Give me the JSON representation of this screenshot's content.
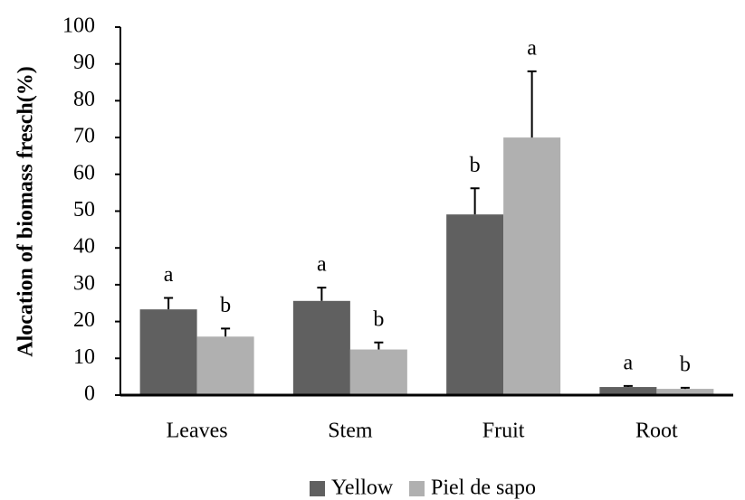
{
  "chart_data": {
    "type": "bar",
    "y_label": "Alocation of biomass fresch(%)",
    "categories": [
      "Leaves",
      "Stem",
      "Fruit",
      "Root"
    ],
    "series": [
      {
        "name": "Yellow",
        "color": "#606060",
        "values": [
          23.3,
          25.6,
          49.1,
          2.2
        ],
        "errors": [
          3.1,
          3.6,
          7.1,
          0.3
        ],
        "letters": [
          "a",
          "a",
          "b",
          "a"
        ]
      },
      {
        "name": "Piel de sapo",
        "color": "#b0b0b0",
        "values": [
          15.9,
          12.4,
          70,
          1.7
        ],
        "errors": [
          2.2,
          1.9,
          18,
          0.3
        ],
        "letters": [
          "b",
          "b",
          "a",
          "b"
        ]
      }
    ],
    "ylim": [
      0,
      100
    ],
    "yticks": [
      0,
      10,
      20,
      30,
      40,
      50,
      60,
      70,
      80,
      90,
      100
    ],
    "legend": "bottom"
  }
}
